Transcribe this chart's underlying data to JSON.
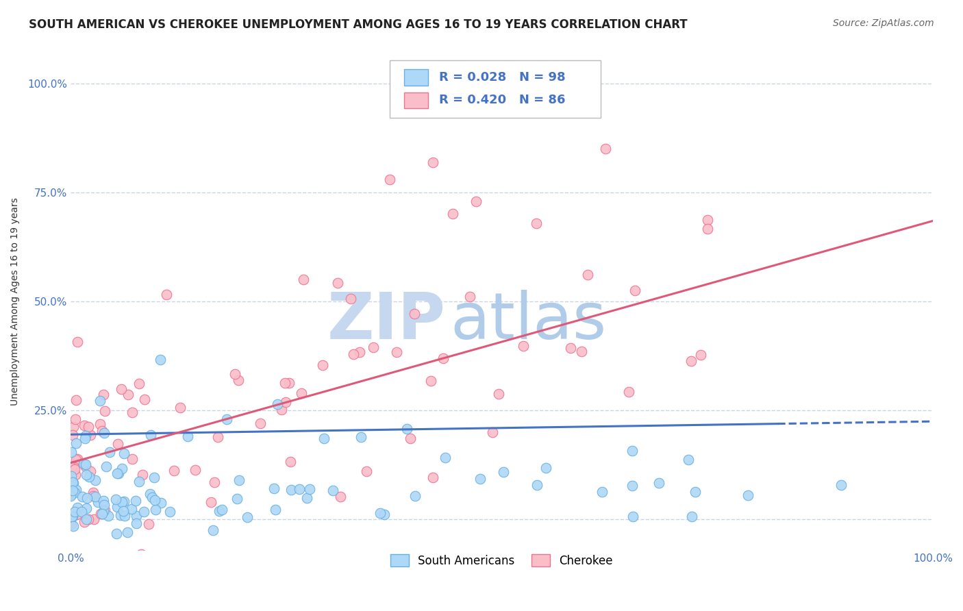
{
  "title": "SOUTH AMERICAN VS CHEROKEE UNEMPLOYMENT AMONG AGES 16 TO 19 YEARS CORRELATION CHART",
  "source": "Source: ZipAtlas.com",
  "ylabel": "Unemployment Among Ages 16 to 19 years",
  "ytick_labels": [
    "",
    "25.0%",
    "50.0%",
    "75.0%",
    "100.0%"
  ],
  "ytick_values": [
    0.0,
    0.25,
    0.5,
    0.75,
    1.0
  ],
  "xlim": [
    0.0,
    1.0
  ],
  "ylim": [
    -0.07,
    1.07
  ],
  "series": [
    {
      "name": "South Americans",
      "R": 0.028,
      "N": 98,
      "face_color": "#add8f7",
      "edge_color": "#6aaee0",
      "line_color": "#4472c4",
      "line_style_solid_end": 0.82
    },
    {
      "name": "Cherokee",
      "R": 0.42,
      "N": 86,
      "face_color": "#f9bec8",
      "edge_color": "#f07090",
      "line_color": "#e05878"
    }
  ],
  "sa_line_y0": 0.195,
  "sa_line_y1": 0.225,
  "ch_line_y0": 0.13,
  "ch_line_y1": 0.685,
  "watermark_zip": "ZIP",
  "watermark_atlas": "atlas",
  "watermark_color_zip": "#c5d8f0",
  "watermark_color_atlas": "#b0cce8",
  "title_fontsize": 12,
  "source_fontsize": 10,
  "axis_label_fontsize": 10,
  "tick_fontsize": 11,
  "legend_fontsize": 13,
  "background_color": "#ffffff",
  "grid_color": "#c8d4e8"
}
